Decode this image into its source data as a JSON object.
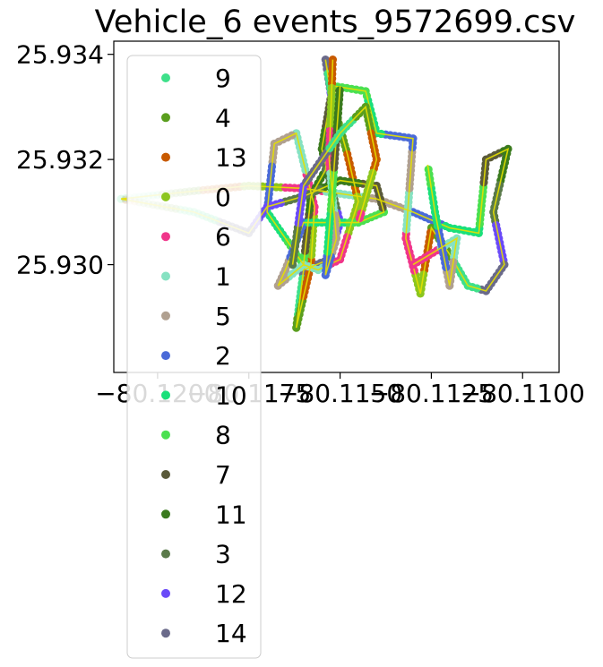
{
  "chart_data": {
    "type": "scatter",
    "title": "Vehicle_6 events_9572699.csv",
    "xlabel": "",
    "ylabel": "",
    "xlim": [
      -80.1212,
      -80.109
    ],
    "ylim": [
      25.92795,
      25.93425
    ],
    "x_ticks": [
      -80.12,
      -80.1175,
      -80.115,
      -80.1125,
      -80.11
    ],
    "x_tick_labels": [
      "−80.1200",
      "−80.1175",
      "−80.1150",
      "−80.1125",
      "−80.1100"
    ],
    "y_ticks": [
      25.93,
      25.932,
      25.934
    ],
    "y_tick_labels": [
      "25.930",
      "25.932",
      "25.934"
    ],
    "grid": false,
    "legend_position": "upper-left",
    "series": [
      {
        "name": "9",
        "color": "#3ee08a"
      },
      {
        "name": "4",
        "color": "#5a9e1e"
      },
      {
        "name": "13",
        "color": "#c85a00"
      },
      {
        "name": "0",
        "color": "#8cc61e"
      },
      {
        "name": "6",
        "color": "#f0358a"
      },
      {
        "name": "1",
        "color": "#86e2c2"
      },
      {
        "name": "5",
        "color": "#b0a090"
      },
      {
        "name": "2",
        "color": "#4a6ad8"
      },
      {
        "name": "10",
        "color": "#1ae07a"
      },
      {
        "name": "8",
        "color": "#4ae050"
      },
      {
        "name": "7",
        "color": "#5a5a3a"
      },
      {
        "name": "11",
        "color": "#3a7a1e"
      },
      {
        "name": "3",
        "color": "#5a7a4a"
      },
      {
        "name": "12",
        "color": "#6a4af8"
      },
      {
        "name": "14",
        "color": "#6a6a8a"
      }
    ],
    "route": [
      [
        -80.121,
        25.93125
      ],
      [
        -80.119,
        25.9314
      ],
      [
        -80.1175,
        25.9315
      ],
      [
        -80.116,
        25.93145
      ],
      [
        -80.115,
        25.93135
      ],
      [
        -80.114,
        25.93125
      ],
      [
        -80.113,
        25.931
      ],
      [
        -80.112,
        25.9307
      ],
      [
        -80.1112,
        25.9306
      ],
      [
        -80.111,
        25.932
      ],
      [
        -80.1104,
        25.9322
      ],
      [
        -80.1108,
        25.931
      ],
      [
        -80.1105,
        25.93
      ],
      [
        -80.111,
        25.9295
      ],
      [
        -80.1115,
        25.9296
      ],
      [
        -80.112,
        25.9302
      ],
      [
        -80.1125,
        25.9307
      ],
      [
        -80.1128,
        25.92945
      ],
      [
        -80.1132,
        25.9305
      ],
      [
        -80.113,
        25.9324
      ],
      [
        -80.114,
        25.9325
      ],
      [
        -80.1143,
        25.9333
      ],
      [
        -80.1152,
        25.9334
      ],
      [
        -80.1155,
        25.9322
      ],
      [
        -80.115,
        25.9308
      ],
      [
        -80.1153,
        25.9301
      ],
      [
        -80.116,
        25.9299
      ],
      [
        -80.1162,
        25.9288
      ],
      [
        -80.1158,
        25.93
      ],
      [
        -80.1157,
        25.9311
      ],
      [
        -80.1162,
        25.9325
      ],
      [
        -80.1168,
        25.9323
      ],
      [
        -80.117,
        25.931
      ],
      [
        -80.1165,
        25.9305
      ],
      [
        -80.116,
        25.93
      ],
      [
        -80.1158,
        25.9313
      ],
      [
        -80.1154,
        25.9318
      ],
      [
        -80.1152,
        25.933
      ],
      [
        -80.1154,
        25.9339
      ],
      [
        -80.1152,
        25.9331
      ],
      [
        -80.1148,
        25.9321
      ],
      [
        -80.1145,
        25.9312
      ],
      [
        -80.115,
        25.9301
      ],
      [
        -80.1156,
        25.9299
      ],
      [
        -80.116,
        25.93
      ],
      [
        -80.1167,
        25.9296
      ],
      [
        -80.1165,
        25.9299
      ],
      [
        -80.116,
        25.9308
      ],
      [
        -80.1145,
        25.9308
      ],
      [
        -80.1138,
        25.931
      ],
      [
        -80.114,
        25.9315
      ],
      [
        -80.115,
        25.9316
      ],
      [
        -80.116,
        25.9313
      ],
      [
        -80.117,
        25.9311
      ],
      [
        -80.1175,
        25.9306
      ],
      [
        -80.119,
        25.931
      ],
      [
        -80.121,
        25.93125
      ]
    ],
    "extra_paths": [
      [
        [
          -80.1152,
          25.9339
        ],
        [
          -80.1153,
          25.932
        ],
        [
          -80.1151,
          25.9305
        ],
        [
          -80.1154,
          25.9298
        ],
        [
          -80.1152,
          25.9315
        ],
        [
          -80.115,
          25.9334
        ]
      ],
      [
        [
          -80.1163,
          25.93
        ],
        [
          -80.116,
          25.9315
        ],
        [
          -80.115,
          25.9325
        ],
        [
          -80.1143,
          25.933
        ],
        [
          -80.114,
          25.932
        ],
        [
          -80.1145,
          25.9308
        ]
      ],
      [
        [
          -80.113,
          25.93
        ],
        [
          -80.1118,
          25.9305
        ],
        [
          -80.112,
          25.9296
        ],
        [
          -80.1124,
          25.931
        ],
        [
          -80.1126,
          25.9319
        ]
      ]
    ]
  }
}
